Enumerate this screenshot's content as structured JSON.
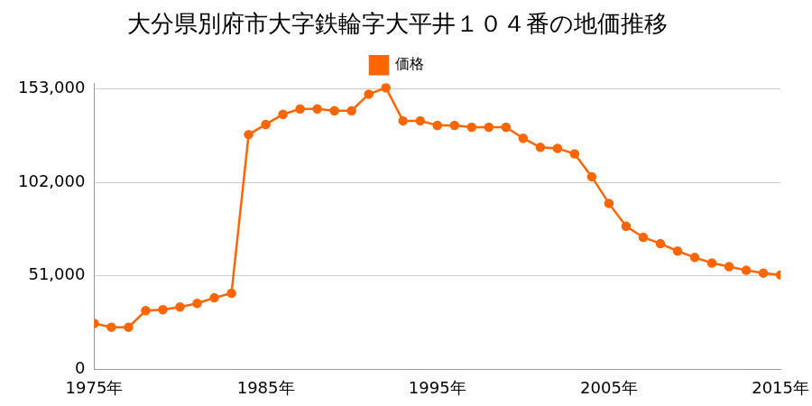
{
  "chart_data": {
    "type": "line",
    "title": "大分県別府市大字鉄輪字大平井１０４番の地価推移",
    "x": [
      1975,
      1976,
      1977,
      1978,
      1979,
      1980,
      1981,
      1982,
      1983,
      1984,
      1985,
      1986,
      1987,
      1988,
      1989,
      1990,
      1991,
      1992,
      1993,
      1994,
      1995,
      1996,
      1997,
      1998,
      1999,
      2000,
      2001,
      2002,
      2003,
      2004,
      2005,
      2006,
      2007,
      2008,
      2009,
      2010,
      2011,
      2012,
      2013,
      2014,
      2015
    ],
    "series": [
      {
        "name": "価格",
        "color": "#ff6600",
        "marker": "circle",
        "line_style": "solid",
        "values": [
          25000,
          23000,
          23000,
          32000,
          32500,
          34000,
          36000,
          39000,
          41500,
          128000,
          133500,
          139000,
          142000,
          142000,
          141000,
          141000,
          150000,
          153500,
          135500,
          135500,
          133000,
          133000,
          132000,
          132000,
          132000,
          126000,
          121000,
          120500,
          117500,
          105000,
          90500,
          78000,
          72000,
          68500,
          64500,
          61000,
          58000,
          56000,
          54000,
          52500,
          51500
        ]
      }
    ],
    "xlim": [
      1975,
      2015
    ],
    "xticks": [
      {
        "value": 1975,
        "label": "1975年"
      },
      {
        "value": 1985,
        "label": "1985年"
      },
      {
        "value": 1995,
        "label": "1995年"
      },
      {
        "value": 2005,
        "label": "2005年"
      },
      {
        "value": 2015,
        "label": "2015年"
      }
    ],
    "ylim": [
      0,
      156000
    ],
    "yticks": [
      0,
      {
        "value": 51000,
        "label": "51,000"
      },
      {
        "value": 102000,
        "label": "102,000"
      },
      {
        "value": 153000,
        "label": "153,000"
      }
    ],
    "grid": true,
    "legend": "top"
  }
}
